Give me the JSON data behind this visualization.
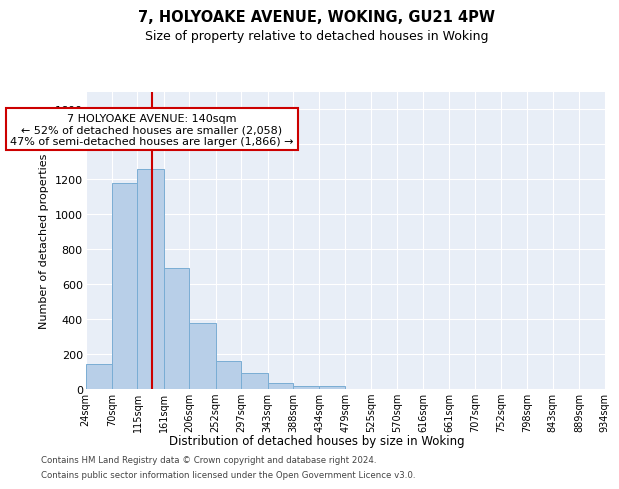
{
  "title1": "7, HOLYOAKE AVENUE, WOKING, GU21 4PW",
  "title2": "Size of property relative to detached houses in Woking",
  "xlabel": "Distribution of detached houses by size in Woking",
  "ylabel": "Number of detached properties",
  "footer1": "Contains HM Land Registry data © Crown copyright and database right 2024.",
  "footer2": "Contains public sector information licensed under the Open Government Licence v3.0.",
  "annotation_line1": "7 HOLYOAKE AVENUE: 140sqm",
  "annotation_line2": "← 52% of detached houses are smaller (2,058)",
  "annotation_line3": "47% of semi-detached houses are larger (1,866) →",
  "bar_color": "#b8cfe8",
  "bar_edge_color": "#7aadd4",
  "red_line_color": "#cc0000",
  "red_line_x": 140,
  "ylim": [
    0,
    1700
  ],
  "yticks": [
    0,
    200,
    400,
    600,
    800,
    1000,
    1200,
    1400,
    1600
  ],
  "bin_edges": [
    24,
    70,
    115,
    161,
    206,
    252,
    297,
    343,
    388,
    434,
    479,
    525,
    570,
    616,
    661,
    707,
    752,
    798,
    843,
    889,
    934
  ],
  "bar_values": [
    145,
    1175,
    1260,
    690,
    375,
    160,
    90,
    35,
    20,
    15,
    0,
    0,
    0,
    0,
    0,
    0,
    0,
    0,
    0,
    0
  ],
  "background_color": "#e8eef7",
  "grid_color": "#ffffff",
  "annotation_box_color": "white",
  "annotation_border_color": "#cc0000"
}
